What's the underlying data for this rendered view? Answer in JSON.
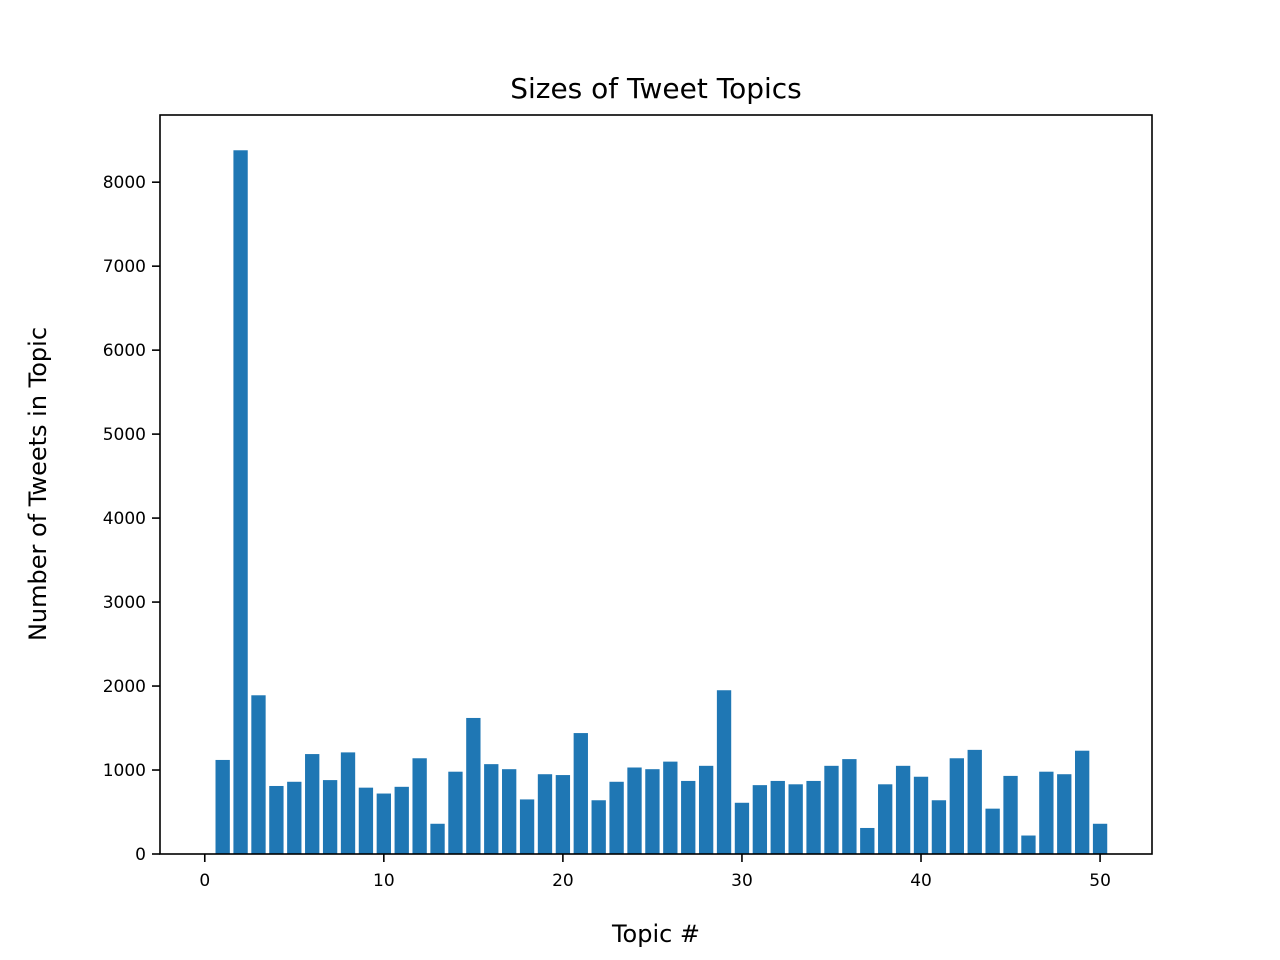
{
  "chart_data": {
    "type": "bar",
    "title": "Sizes of Tweet Topics",
    "xlabel": "Topic #",
    "ylabel": "Number of Tweets in Topic",
    "xlim": [
      -2.5,
      52.9
    ],
    "ylim": [
      0,
      8800
    ],
    "xticks": [
      0,
      10,
      20,
      30,
      40,
      50
    ],
    "yticks": [
      0,
      1000,
      2000,
      3000,
      4000,
      5000,
      6000,
      7000,
      8000
    ],
    "bar_color": "#1f77b4",
    "grid": false,
    "x": [
      1,
      2,
      3,
      4,
      5,
      6,
      7,
      8,
      9,
      10,
      11,
      12,
      13,
      14,
      15,
      16,
      17,
      18,
      19,
      20,
      21,
      22,
      23,
      24,
      25,
      26,
      27,
      28,
      29,
      30,
      31,
      32,
      33,
      34,
      35,
      36,
      37,
      38,
      39,
      40,
      41,
      42,
      43,
      44,
      45,
      46,
      47,
      48,
      49,
      50
    ],
    "values": [
      1120,
      8380,
      1890,
      810,
      860,
      1190,
      880,
      1210,
      790,
      720,
      800,
      1140,
      360,
      980,
      1620,
      1070,
      1010,
      650,
      950,
      940,
      1440,
      640,
      860,
      1030,
      1010,
      1100,
      870,
      1050,
      1950,
      610,
      820,
      870,
      830,
      870,
      1050,
      1130,
      310,
      830,
      1050,
      920,
      640,
      1140,
      1240,
      540,
      930,
      220,
      980,
      950,
      1230,
      360
    ]
  }
}
